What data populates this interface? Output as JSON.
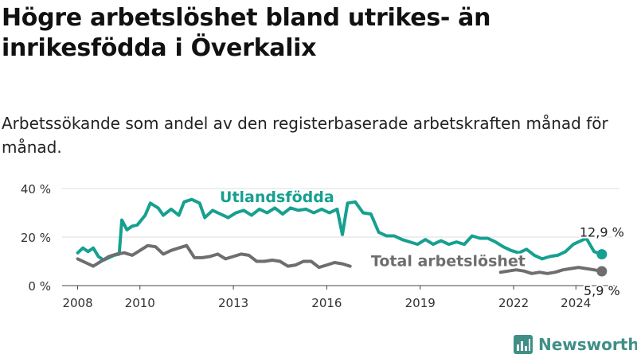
{
  "title": "Högre arbetslöshet bland utrikes- än inrikesfödda i Överkalix",
  "subtitle": "Arbetssökande som andel av den registerbaserade arbetskraften månad för månad.",
  "brand": {
    "name": "Newsworthy",
    "color": "#3f8f86"
  },
  "chart_data": {
    "type": "line",
    "y_ticks": [
      "0 %",
      "20 %",
      "40 %"
    ],
    "x_ticks": [
      "2008",
      "2010",
      "2013",
      "2016",
      "2019",
      "2022",
      "2024"
    ],
    "ylim": [
      0,
      40
    ],
    "grid": true,
    "series": [
      {
        "name": "Utlandsfödda",
        "color": "#16a090",
        "end_label": "12,9 %",
        "points": [
          [
            "2008-01",
            13.5
          ],
          [
            "2008-03",
            15.5
          ],
          [
            "2008-05",
            14.0
          ],
          [
            "2008-07",
            15.5
          ],
          [
            "2008-09",
            12.0
          ],
          [
            "2008-11",
            10.5
          ],
          [
            "2009-01",
            11.5
          ],
          [
            "2009-03",
            12.5
          ],
          [
            "2009-05",
            13.0
          ],
          [
            "2009-06",
            27.0
          ],
          [
            "2009-08",
            23.0
          ],
          [
            "2009-10",
            24.5
          ],
          [
            "2009-12",
            25.0
          ],
          [
            "2010-03",
            29.0
          ],
          [
            "2010-05",
            34.0
          ],
          [
            "2010-08",
            32.0
          ],
          [
            "2010-10",
            29.0
          ],
          [
            "2011-01",
            31.5
          ],
          [
            "2011-04",
            29.0
          ],
          [
            "2011-06",
            34.5
          ],
          [
            "2011-09",
            35.5
          ],
          [
            "2011-12",
            34.0
          ],
          [
            "2012-02",
            28.0
          ],
          [
            "2012-05",
            31.0
          ],
          [
            "2012-08",
            29.5
          ],
          [
            "2012-11",
            28.0
          ],
          [
            "2013-02",
            30.0
          ],
          [
            "2013-05",
            31.0
          ],
          [
            "2013-08",
            29.0
          ],
          [
            "2013-11",
            31.5
          ],
          [
            "2014-02",
            30.0
          ],
          [
            "2014-05",
            32.0
          ],
          [
            "2014-08",
            29.5
          ],
          [
            "2014-11",
            32.0
          ],
          [
            "2015-02",
            31.0
          ],
          [
            "2015-05",
            31.5
          ],
          [
            "2015-08",
            30.0
          ],
          [
            "2015-11",
            31.5
          ],
          [
            "2016-02",
            30.0
          ],
          [
            "2016-05",
            31.5
          ],
          [
            "2016-07",
            21.0
          ],
          [
            "2016-09",
            34.0
          ],
          [
            "2016-12",
            34.5
          ],
          [
            "2017-03",
            30.0
          ],
          [
            "2017-06",
            29.5
          ],
          [
            "2017-09",
            22.0
          ],
          [
            "2017-12",
            20.5
          ],
          [
            "2018-03",
            20.5
          ],
          [
            "2018-06",
            19.0
          ],
          [
            "2018-09",
            18.0
          ],
          [
            "2018-12",
            17.0
          ],
          [
            "2019-03",
            19.0
          ],
          [
            "2019-06",
            17.0
          ],
          [
            "2019-09",
            18.5
          ],
          [
            "2019-12",
            17.0
          ],
          [
            "2020-03",
            18.0
          ],
          [
            "2020-06",
            17.0
          ],
          [
            "2020-09",
            20.5
          ],
          [
            "2020-12",
            19.5
          ],
          [
            "2021-03",
            19.5
          ],
          [
            "2021-06",
            18.0
          ],
          [
            "2021-09",
            16.0
          ],
          [
            "2021-12",
            14.5
          ],
          [
            "2022-03",
            13.5
          ],
          [
            "2022-06",
            15.0
          ],
          [
            "2022-09",
            12.5
          ],
          [
            "2022-12",
            11.0
          ],
          [
            "2023-03",
            12.0
          ],
          [
            "2023-06",
            12.5
          ],
          [
            "2023-09",
            14.0
          ],
          [
            "2023-12",
            17.0
          ],
          [
            "2024-03",
            18.5
          ],
          [
            "2024-05",
            19.5
          ],
          [
            "2024-08",
            14.0
          ],
          [
            "2024-11",
            12.9
          ]
        ]
      },
      {
        "name": "Total arbetslöshet",
        "color": "#6e6e70",
        "end_label": "5,9 %",
        "points": [
          [
            "2008-01",
            11.0
          ],
          [
            "2008-04",
            9.5
          ],
          [
            "2008-07",
            8.0
          ],
          [
            "2008-10",
            10.0
          ],
          [
            "2009-01",
            12.0
          ],
          [
            "2009-04",
            13.0
          ],
          [
            "2009-07",
            13.5
          ],
          [
            "2009-10",
            12.5
          ],
          [
            "2010-01",
            14.5
          ],
          [
            "2010-04",
            16.5
          ],
          [
            "2010-07",
            16.0
          ],
          [
            "2010-10",
            13.0
          ],
          [
            "2011-01",
            14.5
          ],
          [
            "2011-04",
            15.5
          ],
          [
            "2011-07",
            16.5
          ],
          [
            "2011-10",
            11.5
          ],
          [
            "2012-01",
            11.5
          ],
          [
            "2012-04",
            12.0
          ],
          [
            "2012-07",
            13.0
          ],
          [
            "2012-10",
            11.0
          ],
          [
            "2013-01",
            12.0
          ],
          [
            "2013-04",
            13.0
          ],
          [
            "2013-07",
            12.5
          ],
          [
            "2013-10",
            10.0
          ],
          [
            "2014-01",
            10.0
          ],
          [
            "2014-04",
            10.5
          ],
          [
            "2014-07",
            10.0
          ],
          [
            "2014-10",
            8.0
          ],
          [
            "2015-01",
            8.5
          ],
          [
            "2015-04",
            10.0
          ],
          [
            "2015-07",
            10.0
          ],
          [
            "2015-10",
            7.5
          ],
          [
            "2016-01",
            8.5
          ],
          [
            "2016-04",
            9.5
          ],
          [
            "2016-07",
            9.0
          ],
          [
            "2016-10",
            8.0
          ],
          null,
          [
            "2021-08",
            5.5
          ],
          [
            "2021-11",
            6.0
          ],
          [
            "2022-02",
            6.5
          ],
          [
            "2022-05",
            6.0
          ],
          [
            "2022-08",
            5.0
          ],
          [
            "2022-11",
            5.5
          ],
          [
            "2023-02",
            5.0
          ],
          [
            "2023-05",
            5.5
          ],
          [
            "2023-08",
            6.5
          ],
          [
            "2023-11",
            7.0
          ],
          [
            "2024-02",
            7.5
          ],
          [
            "2024-05",
            7.0
          ],
          [
            "2024-08",
            6.5
          ],
          [
            "2024-11",
            5.9
          ]
        ]
      }
    ]
  }
}
